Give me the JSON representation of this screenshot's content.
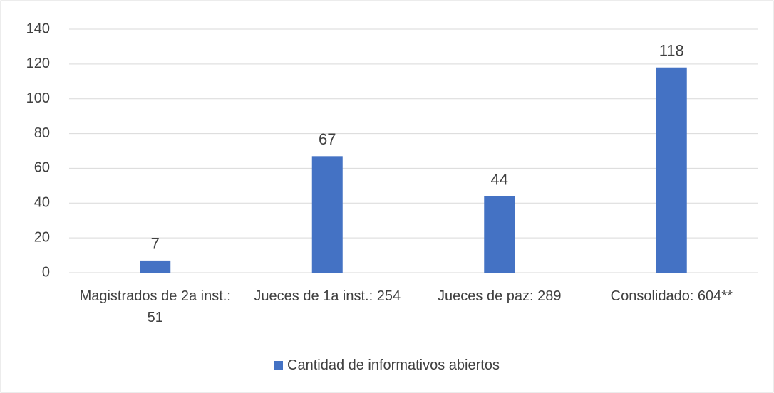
{
  "chart_data": {
    "type": "bar",
    "categories": [
      "Magistrados de 2a inst.: 51",
      "Jueces de 1a inst.: 254",
      "Jueces de paz: 289",
      "Consolidado: 604**"
    ],
    "series": [
      {
        "name": "Cantidad de informativos abiertos",
        "color": "#4472c4",
        "values": [
          7,
          67,
          44,
          118
        ]
      }
    ],
    "ylim": [
      0,
      140
    ],
    "yticks": [
      0,
      20,
      40,
      60,
      80,
      100,
      120,
      140
    ],
    "grid": true,
    "legend": "bottom"
  }
}
